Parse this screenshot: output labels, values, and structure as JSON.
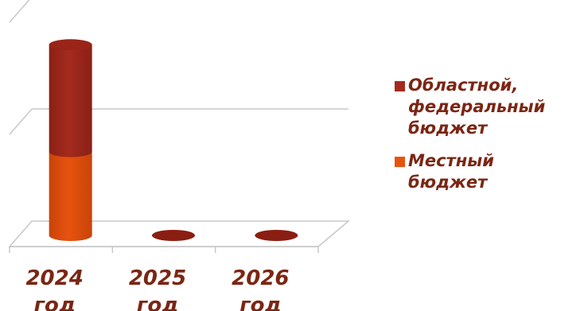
{
  "chart_data": {
    "type": "bar",
    "style": "3d-cylinder-stacked",
    "categories": [
      "2024\nгод",
      "2025\nгод",
      "2026\nгод"
    ],
    "series": [
      {
        "name": "Местный бюджет",
        "values": [
          44,
          0,
          0
        ],
        "color": "#e8520f"
      },
      {
        "name": "Областной, федеральный бюджет",
        "values": [
          56,
          0,
          0
        ],
        "color": "#a52a1e"
      }
    ],
    "ylim": [
      0,
      100
    ],
    "grid": true,
    "legend_position": "right"
  },
  "legend": {
    "items": [
      {
        "label": "Областной,\nфедеральный\nбюджет",
        "color": "#a52a1e"
      },
      {
        "label": "Местный\nбюджет",
        "color": "#e8520f"
      }
    ]
  }
}
